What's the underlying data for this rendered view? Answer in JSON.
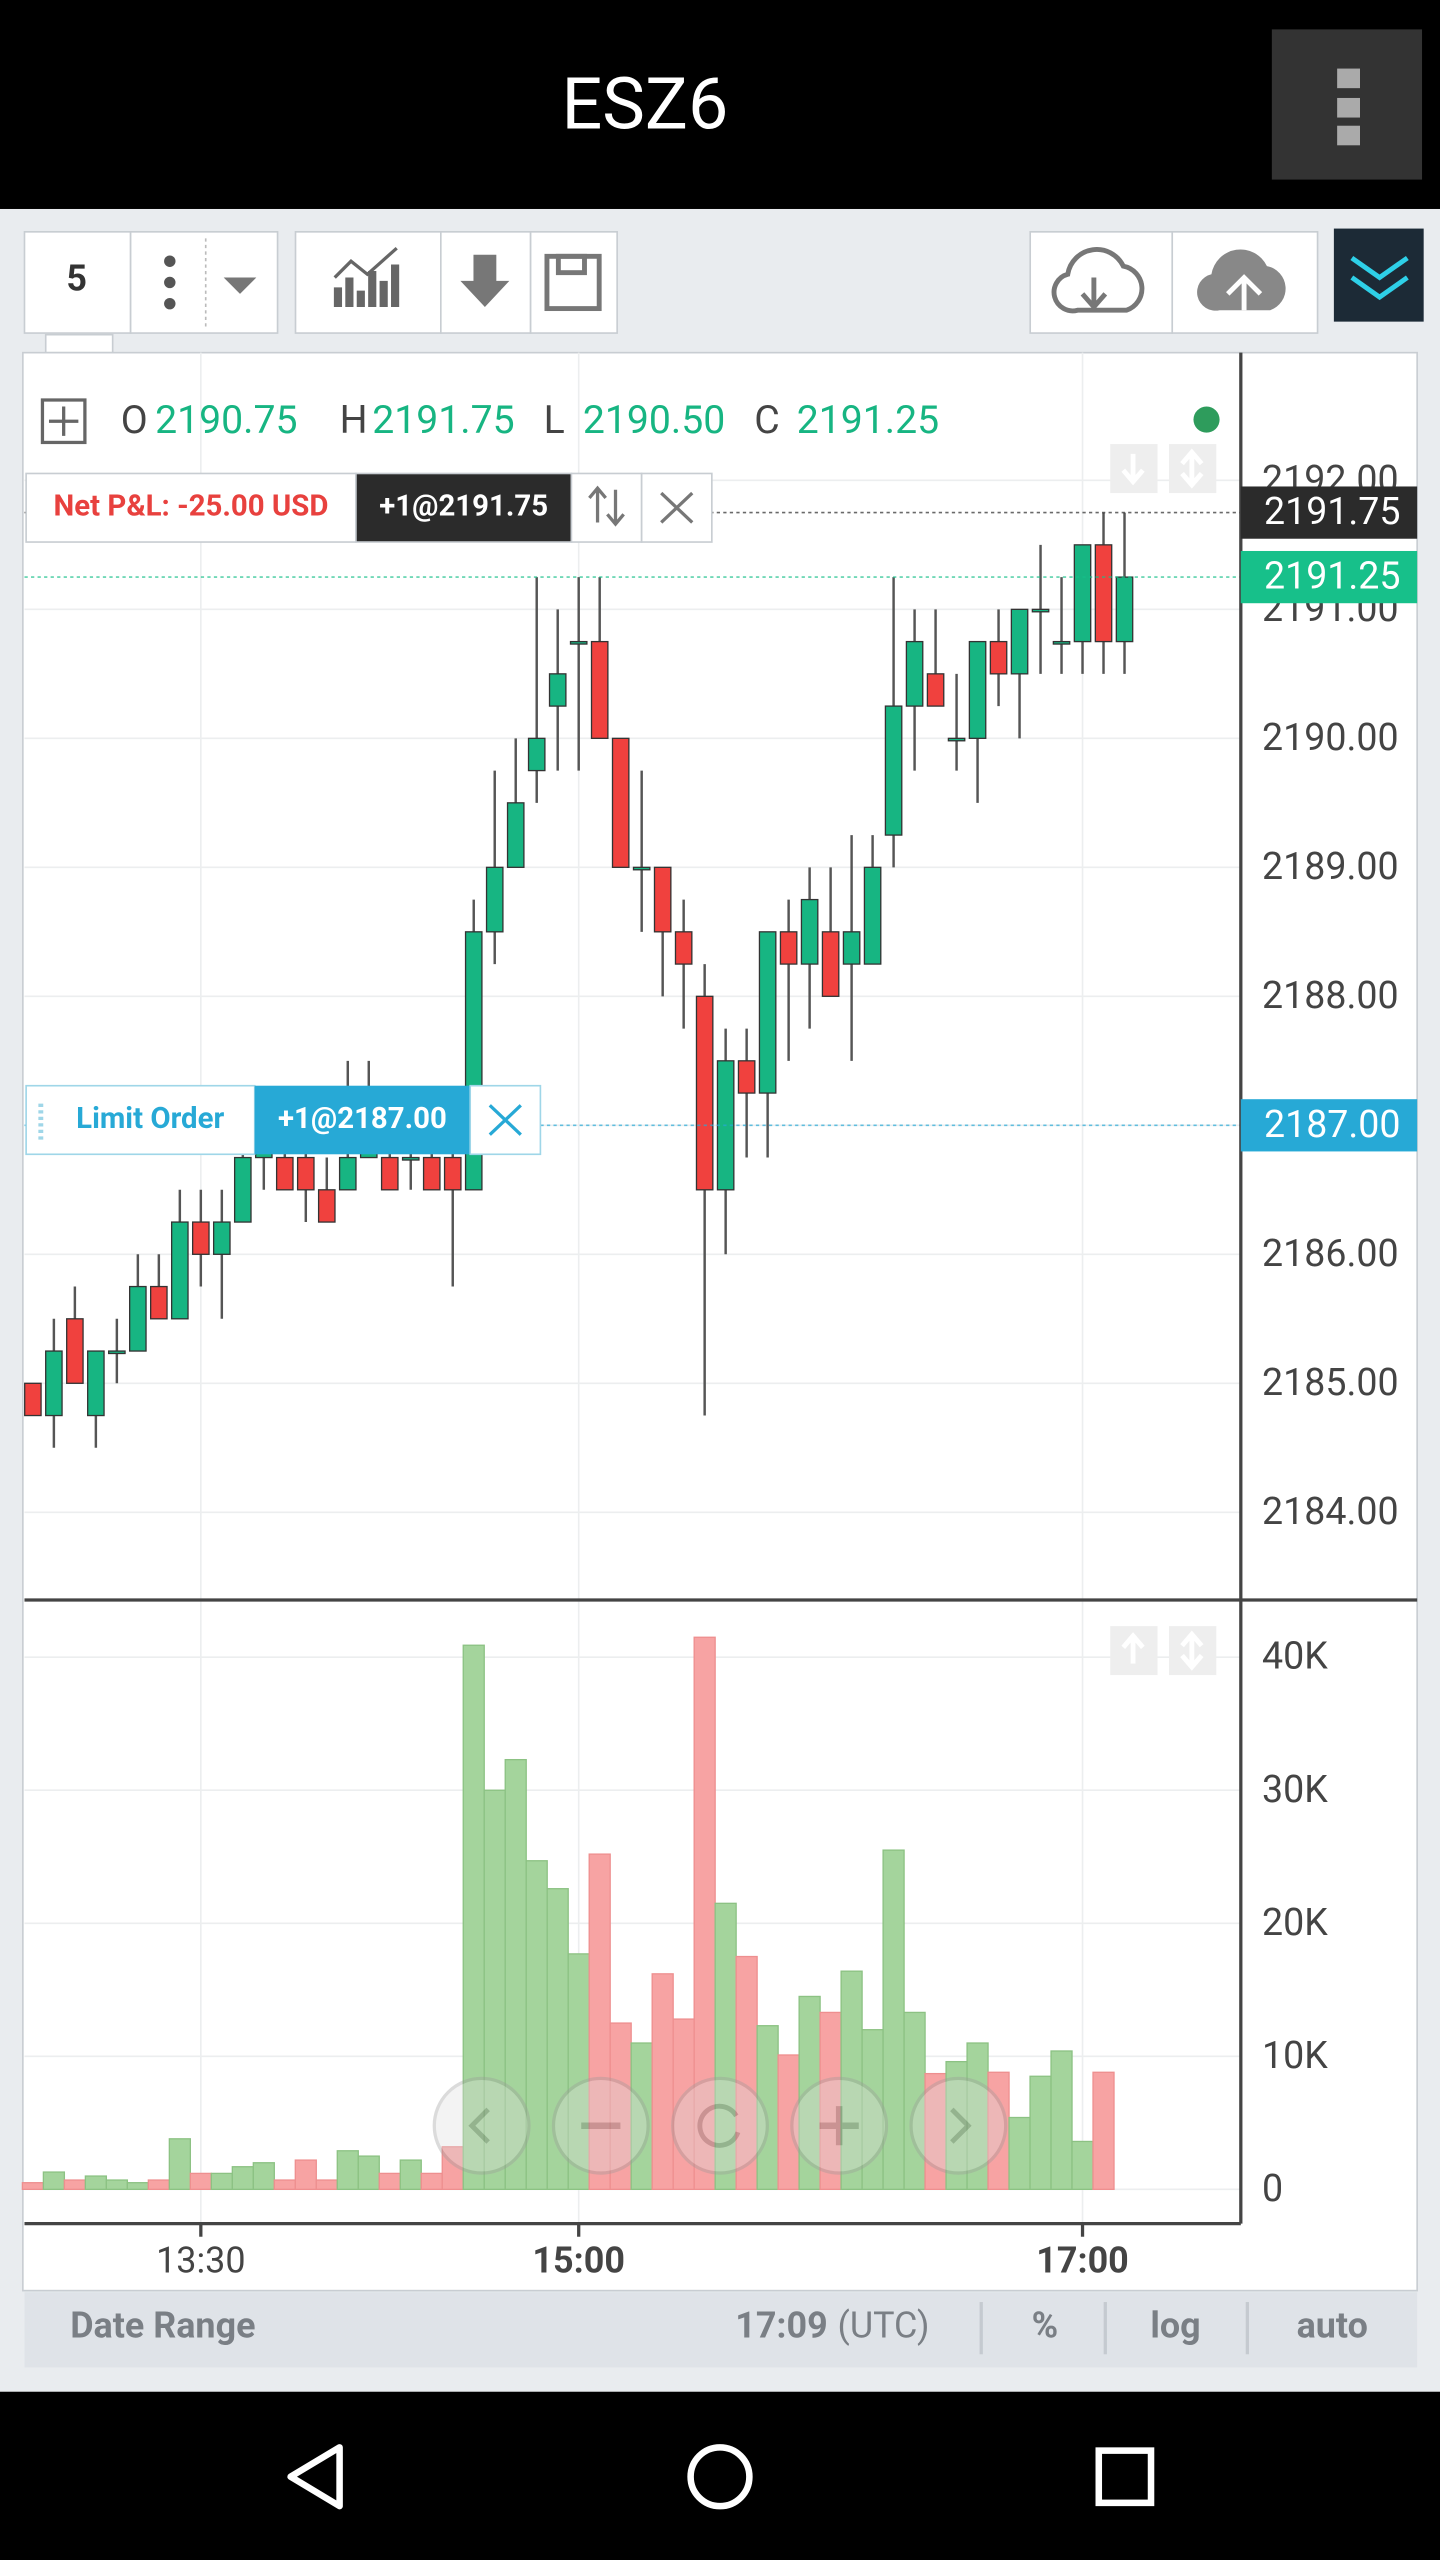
{
  "app_bar": {
    "title": "ESZ6"
  },
  "toolbar": {
    "interval": "5"
  },
  "ohlc_header": [
    {
      "label": "O",
      "value": "2190.75"
    },
    {
      "label": "H",
      "value": "2191.75"
    },
    {
      "label": "L",
      "value": "2190.50"
    },
    {
      "label": "C",
      "value": "2191.25"
    }
  ],
  "orders": {
    "pnl": "Net P&L: -25.00 USD",
    "position": "+1@2191.75",
    "limit_label": "Limit Order",
    "limit": "+1@2187.00"
  },
  "chart_data": [
    {
      "type": "candlestick",
      "x": [
        770,
        775,
        780,
        785,
        790,
        795,
        800,
        805,
        810,
        815,
        820,
        825,
        830,
        835,
        840,
        845,
        850,
        855,
        860,
        865,
        870,
        875,
        880,
        885,
        890,
        895,
        900,
        905,
        910,
        915,
        920,
        925,
        930,
        935,
        940,
        945,
        950,
        955,
        960,
        965,
        970,
        975,
        980,
        985,
        990,
        995,
        1000,
        1005,
        1010,
        1015,
        1020,
        1025,
        1030
      ],
      "open": [
        2185,
        2184.75,
        2185.5,
        2184.75,
        2185.25,
        2185.25,
        2185.75,
        2185.5,
        2186.25,
        2186,
        2186.25,
        2186.75,
        2186.75,
        2186.75,
        2186.5,
        2186.5,
        2186.75,
        2186.75,
        2186.75,
        2186.75,
        2186.75,
        2186.5,
        2188.5,
        2189,
        2189.75,
        2190.25,
        2190.75,
        2190.75,
        2190,
        2189,
        2189,
        2188.5,
        2188,
        2186.5,
        2187.5,
        2187.25,
        2188.5,
        2188.25,
        2188.5,
        2188.25,
        2188.25,
        2189.25,
        2190.25,
        2190.5,
        2190,
        2190,
        2190.75,
        2190.5,
        2191,
        2190.75,
        2190.75,
        2191.5,
        2190.75
      ],
      "high": [
        2185,
        2185.5,
        2185.75,
        2185.25,
        2185.5,
        2186,
        2186,
        2186.5,
        2186.5,
        2186.5,
        2187,
        2187.25,
        2187,
        2187,
        2186.75,
        2187.5,
        2187.5,
        2187,
        2187,
        2187,
        2187,
        2188.75,
        2189.75,
        2190,
        2191.25,
        2191,
        2191.25,
        2191.25,
        2190,
        2189.75,
        2189,
        2188.75,
        2188.25,
        2187.75,
        2187.75,
        2188.5,
        2188.75,
        2189,
        2189,
        2189.25,
        2189.25,
        2191.25,
        2191,
        2191,
        2190.5,
        2190.75,
        2191,
        2191,
        2191.5,
        2191.25,
        2191.5,
        2191.75,
        2191.75
      ],
      "low": [
        2184.75,
        2184.5,
        2185,
        2184.5,
        2185,
        2185.25,
        2185.5,
        2185.5,
        2185.75,
        2185.5,
        2186.25,
        2186.5,
        2186.5,
        2186.25,
        2186.25,
        2186.5,
        2186.75,
        2186.5,
        2186.5,
        2186.5,
        2185.75,
        2186.5,
        2188.25,
        2189,
        2189.5,
        2189.75,
        2189.75,
        2190,
        2189,
        2188.5,
        2188,
        2187.75,
        2184.75,
        2186,
        2186.75,
        2186.75,
        2187.5,
        2187.75,
        2188,
        2187.5,
        2188.25,
        2189,
        2189.75,
        2190.25,
        2189.75,
        2189.5,
        2190.25,
        2190,
        2190.5,
        2190.5,
        2190.5,
        2190.5,
        2190.5
      ],
      "close": [
        2184.75,
        2185.25,
        2185,
        2185.25,
        2185.25,
        2185.75,
        2185.5,
        2186.25,
        2186,
        2186.25,
        2186.75,
        2187,
        2186.5,
        2186.5,
        2186.25,
        2186.75,
        2187,
        2186.5,
        2186.75,
        2186.5,
        2186.5,
        2188.5,
        2189,
        2189.5,
        2190,
        2190.5,
        2190.75,
        2190,
        2189,
        2189,
        2188.5,
        2188.25,
        2186.5,
        2187.5,
        2187.25,
        2188.5,
        2188.25,
        2188.75,
        2188,
        2188.5,
        2189,
        2190.25,
        2190.75,
        2190.25,
        2190,
        2190.75,
        2190.5,
        2191,
        2191,
        2190.75,
        2191.5,
        2190.75,
        2191.25
      ],
      "up_color": "#17b582",
      "down_color": "#f0413e",
      "xlim": [
        768,
        1057.7
      ],
      "ylim": [
        2183.32,
        2192.99
      ],
      "xticks": [
        {
          "value": 810,
          "label": "13:30"
        },
        {
          "value": 900,
          "label": "15:00"
        },
        {
          "value": 1020,
          "label": "17:00"
        }
      ],
      "yticks": [
        {
          "value": 2184,
          "label": "2184.00"
        },
        {
          "value": 2185,
          "label": "2185.00"
        },
        {
          "value": 2186,
          "label": "2186.00"
        },
        {
          "value": 2187,
          "label": "2187.00"
        },
        {
          "value": 2188,
          "label": "2188.00"
        },
        {
          "value": 2189,
          "label": "2189.00"
        },
        {
          "value": 2190,
          "label": "2190.00"
        },
        {
          "value": 2191,
          "label": "2191.00"
        },
        {
          "value": 2192,
          "label": "2192.00"
        }
      ],
      "markers": [
        {
          "value": 2191.75,
          "label": "2191.75",
          "color": "#2b2b2b"
        },
        {
          "value": 2191.25,
          "label": "2191.25",
          "color": "#17c08a"
        },
        {
          "value": 2187,
          "label": "2187.00",
          "color": "#27a9d6"
        }
      ]
    },
    {
      "type": "bar",
      "x": [
        770,
        775,
        780,
        785,
        790,
        795,
        800,
        805,
        810,
        815,
        820,
        825,
        830,
        835,
        840,
        845,
        850,
        855,
        860,
        865,
        870,
        875,
        880,
        885,
        890,
        895,
        900,
        905,
        910,
        915,
        920,
        925,
        930,
        935,
        940,
        945,
        950,
        955,
        960,
        965,
        970,
        975,
        980,
        985,
        990,
        995,
        1000,
        1005,
        1010,
        1015,
        1020,
        1025,
        1030
      ],
      "values": [
        500,
        1300,
        700,
        1000,
        700,
        500,
        700,
        3800,
        1200,
        1200,
        1700,
        2000,
        700,
        2200,
        700,
        2900,
        2500,
        1200,
        2200,
        1200,
        3200,
        40900,
        30000,
        32300,
        24700,
        22600,
        17700,
        25200,
        12500,
        11000,
        16200,
        12800,
        41500,
        21500,
        17500,
        12300,
        10100,
        14500,
        13300,
        16400,
        12000,
        25500,
        13300,
        8700,
        9600,
        11000,
        8800,
        5400,
        8500,
        10400,
        3600,
        8800,
        null
      ],
      "up_color": "#a4d49c",
      "down_color": "#f7a3a3",
      "xlim": [
        768,
        1057.7
      ],
      "ylim": [
        -2580,
        44300
      ],
      "xticks": [
        {
          "value": 810,
          "label": "13:30"
        },
        {
          "value": 900,
          "label": "15:00"
        },
        {
          "value": 1020,
          "label": "17:00"
        }
      ],
      "yticks": [
        0,
        {
          "value": 10000,
          "label": "10K"
        },
        {
          "value": 20000,
          "label": "20K"
        },
        {
          "value": 30000,
          "label": "30K"
        },
        {
          "value": 40000,
          "label": "40K"
        }
      ]
    }
  ],
  "footer": {
    "date_range": "Date Range",
    "time": "17:09",
    "timezone": "(UTC)",
    "percent": "%",
    "log": "log",
    "auto": "auto"
  }
}
